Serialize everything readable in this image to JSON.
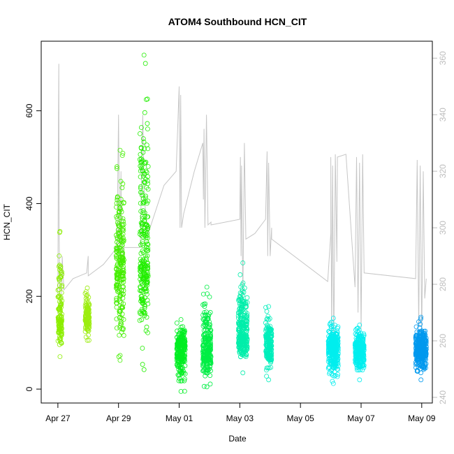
{
  "chart_data": {
    "type": "scatter",
    "title": "ATOM4 Southbound HCN_CIT",
    "xlabel": "Date",
    "ylabel": "HCN_CIT",
    "x_tick_labels": [
      "Apr 27",
      "Apr 29",
      "May 01",
      "May 03",
      "May 05",
      "May 07",
      "May 09"
    ],
    "y_ticks": [
      0,
      200,
      400,
      600
    ],
    "y_range": [
      -30,
      750
    ],
    "y2_ticks": [
      240,
      260,
      280,
      300,
      320,
      340,
      360
    ],
    "y2_range": [
      238,
      366
    ],
    "x_range_days": [
      -0.55,
      12.35
    ],
    "grid": false,
    "legend": "none",
    "scatter_groups": [
      {
        "x_start": 0.0,
        "x_end": 0.14,
        "y_min": 70,
        "y_max": 340,
        "y_center": 150,
        "color": "#8cee00"
      },
      {
        "x_start": 0.9,
        "x_end": 1.04,
        "y_min": 105,
        "y_max": 218,
        "y_center": 155,
        "color": "#9ced10"
      },
      {
        "x_start": 1.92,
        "x_end": 2.18,
        "y_min": 62,
        "y_max": 515,
        "y_center": 260,
        "color": "#44ee00"
      },
      {
        "x_start": 2.7,
        "x_end": 2.98,
        "y_min": 42,
        "y_max": 720,
        "y_center": 280,
        "color": "#22ee00"
      },
      {
        "x_start": 3.92,
        "x_end": 4.2,
        "y_min": -5,
        "y_max": 150,
        "y_center": 90,
        "color": "#00ee22"
      },
      {
        "x_start": 4.78,
        "x_end": 5.05,
        "y_min": 5,
        "y_max": 220,
        "y_center": 85,
        "color": "#00ee44"
      },
      {
        "x_start": 5.95,
        "x_end": 6.25,
        "y_min": 35,
        "y_max": 272,
        "y_center": 120,
        "color": "#00eeaa"
      },
      {
        "x_start": 6.85,
        "x_end": 7.05,
        "y_min": 20,
        "y_max": 178,
        "y_center": 95,
        "color": "#00eebb"
      },
      {
        "x_start": 8.92,
        "x_end": 9.25,
        "y_min": 12,
        "y_max": 153,
        "y_center": 90,
        "color": "#00eeee"
      },
      {
        "x_start": 9.8,
        "x_end": 10.1,
        "y_min": 20,
        "y_max": 138,
        "y_center": 85,
        "color": "#00eeee"
      },
      {
        "x_start": 11.8,
        "x_end": 12.15,
        "y_min": 20,
        "y_max": 155,
        "y_center": 88,
        "color": "#0099ee"
      }
    ],
    "line_series": {
      "color": "#c6c6c6",
      "axis": "right",
      "points": [
        [
          0.0,
          276
        ],
        [
          0.02,
          340
        ],
        [
          0.03,
          358
        ],
        [
          0.04,
          300
        ],
        [
          0.06,
          278
        ],
        [
          0.1,
          271
        ],
        [
          0.14,
          283
        ],
        [
          0.14,
          290
        ],
        [
          0.2,
          278
        ],
        [
          0.5,
          282
        ],
        [
          0.95,
          284
        ],
        [
          1.0,
          290
        ],
        [
          1.0,
          283
        ],
        [
          1.5,
          287
        ],
        [
          1.95,
          293
        ],
        [
          2.0,
          340
        ],
        [
          2.04,
          285
        ],
        [
          2.08,
          320
        ],
        [
          2.1,
          296
        ],
        [
          2.18,
          290
        ],
        [
          2.18,
          293
        ],
        [
          2.7,
          293
        ],
        [
          2.72,
          296
        ],
        [
          2.8,
          340
        ],
        [
          2.85,
          310
        ],
        [
          2.98,
          298
        ],
        [
          3.5,
          315
        ],
        [
          3.9,
          320
        ],
        [
          4.0,
          350
        ],
        [
          4.03,
          300
        ],
        [
          4.05,
          347
        ],
        [
          4.08,
          300
        ],
        [
          4.15,
          305
        ],
        [
          4.5,
          320
        ],
        [
          4.78,
          330
        ],
        [
          4.8,
          310
        ],
        [
          4.82,
          335
        ],
        [
          4.85,
          300
        ],
        [
          4.9,
          340
        ],
        [
          4.95,
          301
        ],
        [
          5.05,
          302
        ],
        [
          5.05,
          301
        ],
        [
          6.0,
          303
        ],
        [
          6.02,
          325
        ],
        [
          6.04,
          290
        ],
        [
          6.06,
          322
        ],
        [
          6.1,
          275
        ],
        [
          6.15,
          330
        ],
        [
          6.2,
          296
        ],
        [
          6.5,
          298
        ],
        [
          6.85,
          303
        ],
        [
          6.9,
          327
        ],
        [
          6.92,
          290
        ],
        [
          6.95,
          323
        ],
        [
          7.0,
          290
        ],
        [
          7.05,
          300
        ],
        [
          7.05,
          296
        ],
        [
          8.9,
          281
        ],
        [
          9.0,
          298
        ],
        [
          9.0,
          325
        ],
        [
          9.03,
          260
        ],
        [
          9.06,
          322
        ],
        [
          9.1,
          258
        ],
        [
          9.15,
          326
        ],
        [
          9.2,
          288
        ],
        [
          9.22,
          325
        ],
        [
          9.5,
          326
        ],
        [
          9.8,
          279
        ],
        [
          9.85,
          325
        ],
        [
          9.9,
          270
        ],
        [
          9.95,
          323
        ],
        [
          10.0,
          264
        ],
        [
          10.05,
          326
        ],
        [
          10.1,
          284
        ],
        [
          11.8,
          282
        ],
        [
          11.85,
          324
        ],
        [
          11.9,
          265
        ],
        [
          11.95,
          322
        ],
        [
          12.0,
          262
        ],
        [
          12.05,
          320
        ],
        [
          12.1,
          275
        ],
        [
          12.15,
          282
        ]
      ]
    }
  }
}
